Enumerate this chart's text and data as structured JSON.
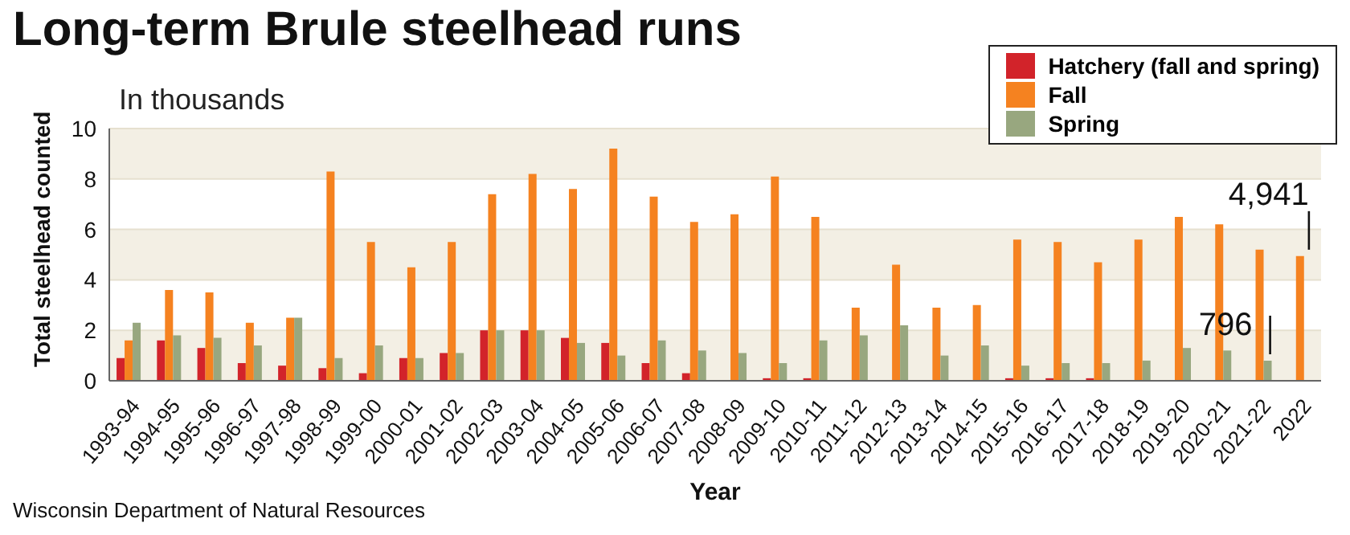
{
  "chart_data": {
    "type": "bar",
    "title": "Long-term Brule steelhead runs",
    "subtitle": "In thousands",
    "xlabel": "Year",
    "ylabel": "Total steelhead counted",
    "categories": [
      "1993-94",
      "1994-95",
      "1995-96",
      "1996-97",
      "1997-98",
      "1998-99",
      "1999-00",
      "2000-01",
      "2001-02",
      "2002-03",
      "2003-04",
      "2004-05",
      "2005-06",
      "2006-07",
      "2007-08",
      "2008-09",
      "2009-10",
      "2010-11",
      "2011-12",
      "2012-13",
      "2013-14",
      "2014-15",
      "2015-16",
      "2016-17",
      "2017-18",
      "2018-19",
      "2019-20",
      "2020-21",
      "2021-22",
      "2022"
    ],
    "series": [
      {
        "name": "Hatchery (fall and spring)",
        "color": "#d2232a",
        "values": [
          0.9,
          1.6,
          1.3,
          0.7,
          0.6,
          0.5,
          0.3,
          0.9,
          1.1,
          2.0,
          2.0,
          1.7,
          1.5,
          0.7,
          0.3,
          0,
          0.1,
          0.1,
          0,
          0,
          0,
          0,
          0.1,
          0.1,
          0.1,
          0,
          0,
          0,
          0,
          null
        ]
      },
      {
        "name": "Fall",
        "color": "#f58220",
        "values": [
          1.6,
          3.6,
          3.5,
          2.3,
          2.5,
          8.3,
          5.5,
          4.5,
          5.5,
          7.4,
          8.2,
          7.6,
          9.2,
          7.3,
          6.3,
          6.6,
          8.1,
          6.5,
          2.9,
          4.6,
          2.9,
          3.0,
          5.6,
          5.5,
          4.7,
          5.6,
          6.5,
          6.2,
          5.2,
          4.941
        ]
      },
      {
        "name": "Spring",
        "color": "#98a77f",
        "values": [
          2.3,
          1.8,
          1.7,
          1.4,
          2.5,
          0.9,
          1.4,
          0.9,
          1.1,
          2.0,
          2.0,
          1.5,
          1.0,
          1.6,
          1.2,
          1.1,
          0.7,
          1.6,
          1.8,
          2.2,
          1.0,
          1.4,
          0.6,
          0.7,
          0.7,
          0.8,
          1.3,
          1.2,
          0.796,
          null
        ]
      }
    ],
    "ylim": [
      0,
      10
    ],
    "yticks": [
      0,
      2,
      4,
      6,
      8,
      10
    ],
    "grid": "y",
    "legend": "top right",
    "annotations": [
      {
        "text": "4,941",
        "x": "2022",
        "y": 4.941
      },
      {
        "text": "796",
        "x": "2021-22",
        "y": 0.796
      },
      "Wisconsin Department of Natural Resources"
    ]
  }
}
